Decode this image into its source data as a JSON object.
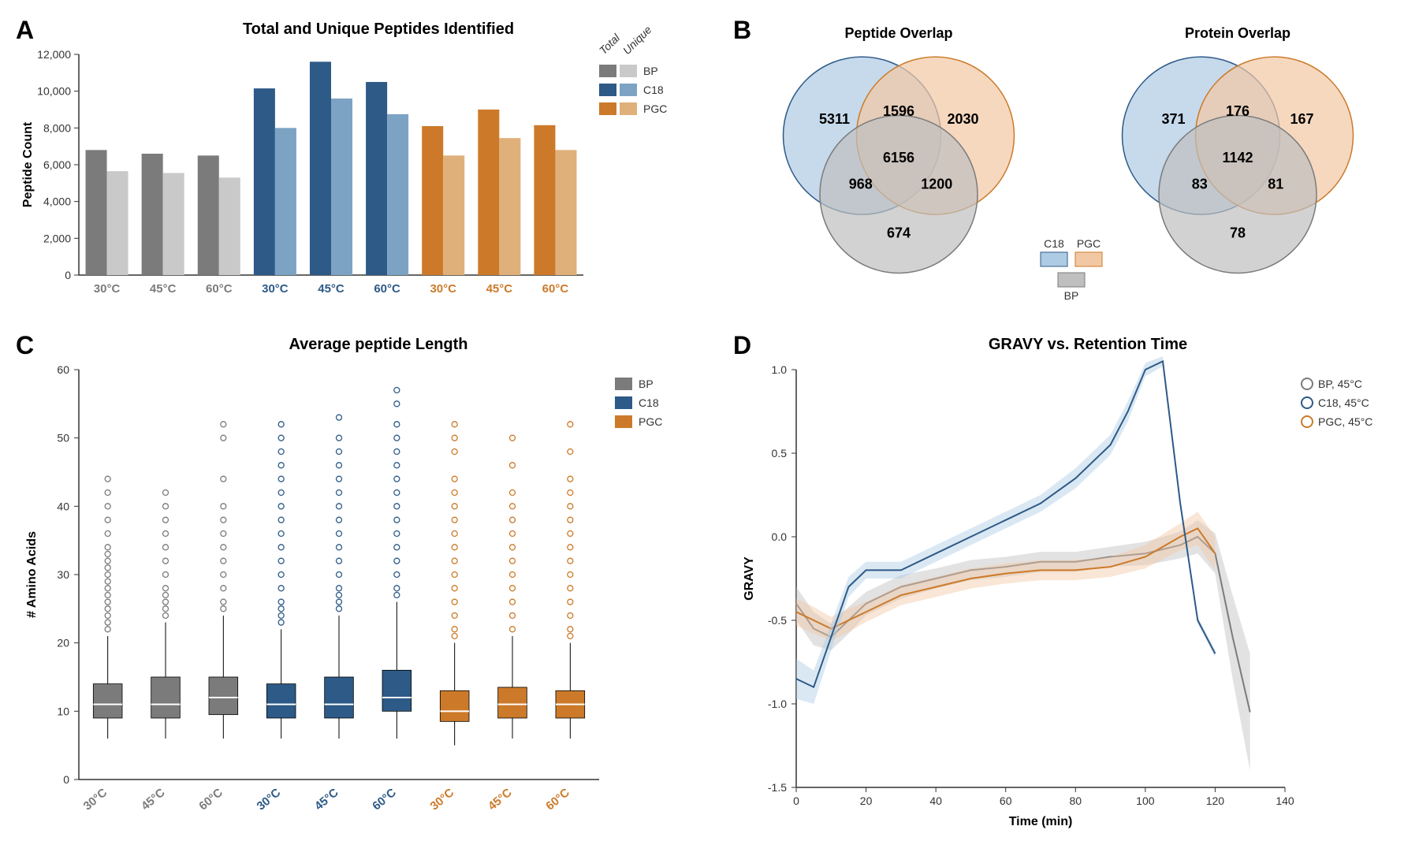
{
  "colors": {
    "bp_dark": "#7b7b7b",
    "bp_light": "#c9c9c9",
    "c18_dark": "#2d5a87",
    "c18_light": "#7da3c4",
    "pgc_dark": "#cc7a29",
    "pgc_light": "#e0b07a",
    "bp_fill": "#bfbfbf",
    "c18_fill": "#aecbe4",
    "pgc_fill": "#f2c8a4",
    "axis": "#333333",
    "grid": "#e0e0e0",
    "bg": "#ffffff"
  },
  "panelA": {
    "label": "A",
    "title": "Total and Unique Peptides Identified",
    "ylabel": "Peptide Count",
    "ylim": [
      0,
      12000
    ],
    "ytick_step": 2000,
    "temps": [
      "30°C",
      "45°C",
      "60°C"
    ],
    "legend_groups": [
      "Total",
      "Unique"
    ],
    "legend_items": [
      "BP",
      "C18",
      "PGC"
    ],
    "bar_width": 0.4,
    "data": [
      {
        "group": "BP",
        "temp": "30°C",
        "total": 6800,
        "unique": 5650,
        "darkColor": "#7b7b7b",
        "lightColor": "#c9c9c9",
        "labelColor": "#7b7b7b"
      },
      {
        "group": "BP",
        "temp": "45°C",
        "total": 6600,
        "unique": 5550,
        "darkColor": "#7b7b7b",
        "lightColor": "#c9c9c9",
        "labelColor": "#7b7b7b"
      },
      {
        "group": "BP",
        "temp": "60°C",
        "total": 6500,
        "unique": 5300,
        "darkColor": "#7b7b7b",
        "lightColor": "#c9c9c9",
        "labelColor": "#7b7b7b"
      },
      {
        "group": "C18",
        "temp": "30°C",
        "total": 10150,
        "unique": 8000,
        "darkColor": "#2d5a87",
        "lightColor": "#7da3c4",
        "labelColor": "#2d5a87"
      },
      {
        "group": "C18",
        "temp": "45°C",
        "total": 11600,
        "unique": 9600,
        "darkColor": "#2d5a87",
        "lightColor": "#7da3c4",
        "labelColor": "#2d5a87"
      },
      {
        "group": "C18",
        "temp": "60°C",
        "total": 10500,
        "unique": 8750,
        "darkColor": "#2d5a87",
        "lightColor": "#7da3c4",
        "labelColor": "#2d5a87"
      },
      {
        "group": "PGC",
        "temp": "30°C",
        "total": 8100,
        "unique": 6500,
        "darkColor": "#cc7a29",
        "lightColor": "#e0b07a",
        "labelColor": "#cc7a29"
      },
      {
        "group": "PGC",
        "temp": "45°C",
        "total": 9000,
        "unique": 7450,
        "darkColor": "#cc7a29",
        "lightColor": "#e0b07a",
        "labelColor": "#cc7a29"
      },
      {
        "group": "PGC",
        "temp": "60°C",
        "total": 8150,
        "unique": 6800,
        "darkColor": "#cc7a29",
        "lightColor": "#e0b07a",
        "labelColor": "#cc7a29"
      }
    ]
  },
  "panelB": {
    "label": "B",
    "peptide_title": "Peptide Overlap",
    "protein_title": "Protein Overlap",
    "legend": {
      "c18": "C18",
      "pgc": "PGC",
      "bp": "BP"
    },
    "peptide": {
      "c18_only": 5311,
      "pgc_only": 2030,
      "bp_only": 674,
      "c18_pgc": 1596,
      "c18_bp": 968,
      "pgc_bp": 1200,
      "all": 6156
    },
    "protein": {
      "c18_only": 371,
      "pgc_only": 167,
      "bp_only": 78,
      "c18_pgc": 176,
      "c18_bp": 83,
      "pgc_bp": 81,
      "all": 1142
    }
  },
  "panelC": {
    "label": "C",
    "title": "Average peptide Length",
    "ylabel": "# Amino  Acids",
    "ylim": [
      0,
      60
    ],
    "ytick_step": 10,
    "temps": [
      "30°C",
      "45°C",
      "60°C",
      "30°C",
      "45°C",
      "60°C",
      "30°C",
      "45°C",
      "60°C"
    ],
    "legend_items": [
      "BP",
      "C18",
      "PGC"
    ],
    "boxes": [
      {
        "color": "#7b7b7b",
        "labelColor": "#7b7b7b",
        "q1": 9,
        "med": 11,
        "q3": 14,
        "wl": 6,
        "wh": 21,
        "outliers": [
          22,
          23,
          24,
          25,
          26,
          27,
          28,
          29,
          30,
          31,
          32,
          33,
          34,
          36,
          38,
          40,
          42,
          44
        ]
      },
      {
        "color": "#7b7b7b",
        "labelColor": "#7b7b7b",
        "q1": 9,
        "med": 11,
        "q3": 15,
        "wl": 6,
        "wh": 23,
        "outliers": [
          24,
          25,
          26,
          27,
          28,
          30,
          32,
          34,
          36,
          38,
          40,
          42
        ]
      },
      {
        "color": "#7b7b7b",
        "labelColor": "#7b7b7b",
        "q1": 9.5,
        "med": 12,
        "q3": 15,
        "wl": 6,
        "wh": 24,
        "outliers": [
          25,
          26,
          28,
          30,
          32,
          34,
          36,
          38,
          40,
          44,
          50,
          52
        ]
      },
      {
        "color": "#2d5a87",
        "labelColor": "#2d5a87",
        "q1": 9,
        "med": 11,
        "q3": 14,
        "wl": 6,
        "wh": 22,
        "outliers": [
          23,
          24,
          25,
          26,
          28,
          30,
          32,
          34,
          36,
          38,
          40,
          42,
          44,
          46,
          48,
          50,
          52
        ]
      },
      {
        "color": "#2d5a87",
        "labelColor": "#2d5a87",
        "q1": 9,
        "med": 11,
        "q3": 15,
        "wl": 6,
        "wh": 24,
        "outliers": [
          25,
          26,
          27,
          28,
          30,
          32,
          34,
          36,
          38,
          40,
          42,
          44,
          46,
          48,
          50,
          53
        ]
      },
      {
        "color": "#2d5a87",
        "labelColor": "#2d5a87",
        "q1": 10,
        "med": 12,
        "q3": 16,
        "wl": 6,
        "wh": 26,
        "outliers": [
          27,
          28,
          30,
          32,
          34,
          36,
          38,
          40,
          42,
          44,
          46,
          48,
          50,
          52,
          55,
          57
        ]
      },
      {
        "color": "#cc7a29",
        "labelColor": "#cc7a29",
        "q1": 8.5,
        "med": 10,
        "q3": 13,
        "wl": 5,
        "wh": 20,
        "outliers": [
          21,
          22,
          24,
          26,
          28,
          30,
          32,
          34,
          36,
          38,
          40,
          42,
          44,
          48,
          50,
          52
        ]
      },
      {
        "color": "#cc7a29",
        "labelColor": "#cc7a29",
        "q1": 9,
        "med": 11,
        "q3": 13.5,
        "wl": 6,
        "wh": 21,
        "outliers": [
          22,
          24,
          26,
          28,
          30,
          32,
          34,
          36,
          38,
          40,
          42,
          46,
          50
        ]
      },
      {
        "color": "#cc7a29",
        "labelColor": "#cc7a29",
        "q1": 9,
        "med": 11,
        "q3": 13,
        "wl": 6,
        "wh": 20,
        "outliers": [
          21,
          22,
          24,
          26,
          28,
          30,
          32,
          34,
          36,
          38,
          40,
          42,
          44,
          48,
          52
        ]
      }
    ]
  },
  "panelD": {
    "label": "D",
    "title": "GRAVY vs. Retention Time",
    "xlabel": "Time (min)",
    "ylabel": "GRAVY",
    "xlim": [
      0,
      140
    ],
    "xtick_step": 20,
    "ylim": [
      -1.5,
      1.0
    ],
    "ytick_step": 0.5,
    "legend": [
      "BP, 45°C",
      "C18, 45°C",
      "PGC, 45°C"
    ],
    "legend_colors": [
      "#7b7b7b",
      "#2d5a87",
      "#cc7a29"
    ],
    "series": {
      "bp": {
        "color": "#7b7b7b",
        "fill": "#bfbfbf",
        "x": [
          0,
          5,
          10,
          15,
          20,
          30,
          40,
          50,
          60,
          70,
          80,
          90,
          100,
          110,
          115,
          120,
          125,
          130
        ],
        "y": [
          -0.4,
          -0.55,
          -0.6,
          -0.5,
          -0.4,
          -0.3,
          -0.25,
          -0.2,
          -0.18,
          -0.15,
          -0.15,
          -0.12,
          -0.1,
          -0.05,
          0.0,
          -0.1,
          -0.6,
          -1.05
        ],
        "band": [
          0.1,
          0.1,
          0.08,
          0.08,
          0.07,
          0.07,
          0.06,
          0.06,
          0.06,
          0.06,
          0.06,
          0.06,
          0.07,
          0.08,
          0.1,
          0.12,
          0.25,
          0.35
        ]
      },
      "c18": {
        "color": "#2d5a87",
        "fill": "#aecbe4",
        "x": [
          0,
          5,
          10,
          15,
          20,
          30,
          40,
          50,
          60,
          70,
          80,
          90,
          95,
          100,
          105,
          110,
          115,
          120
        ],
        "y": [
          -0.85,
          -0.9,
          -0.6,
          -0.3,
          -0.2,
          -0.2,
          -0.1,
          0.0,
          0.1,
          0.2,
          0.35,
          0.55,
          0.75,
          1.0,
          1.05,
          0.2,
          -0.5,
          -0.7
        ],
        "band": [
          0.12,
          0.1,
          0.08,
          0.06,
          0.05,
          0.05,
          0.05,
          0.05,
          0.05,
          0.05,
          0.06,
          0.06,
          0.06,
          0.04,
          0.03,
          0.03,
          0.02,
          0.02
        ]
      },
      "pgc": {
        "color": "#cc7a29",
        "fill": "#f2c8a4",
        "x": [
          0,
          5,
          10,
          15,
          20,
          30,
          40,
          50,
          60,
          70,
          80,
          90,
          100,
          110,
          115,
          120
        ],
        "y": [
          -0.45,
          -0.5,
          -0.55,
          -0.5,
          -0.45,
          -0.35,
          -0.3,
          -0.25,
          -0.22,
          -0.2,
          -0.2,
          -0.18,
          -0.12,
          0.0,
          0.05,
          -0.1
        ],
        "band": [
          0.08,
          0.08,
          0.07,
          0.07,
          0.06,
          0.06,
          0.06,
          0.06,
          0.06,
          0.06,
          0.06,
          0.06,
          0.07,
          0.08,
          0.1,
          0.1
        ]
      }
    }
  }
}
